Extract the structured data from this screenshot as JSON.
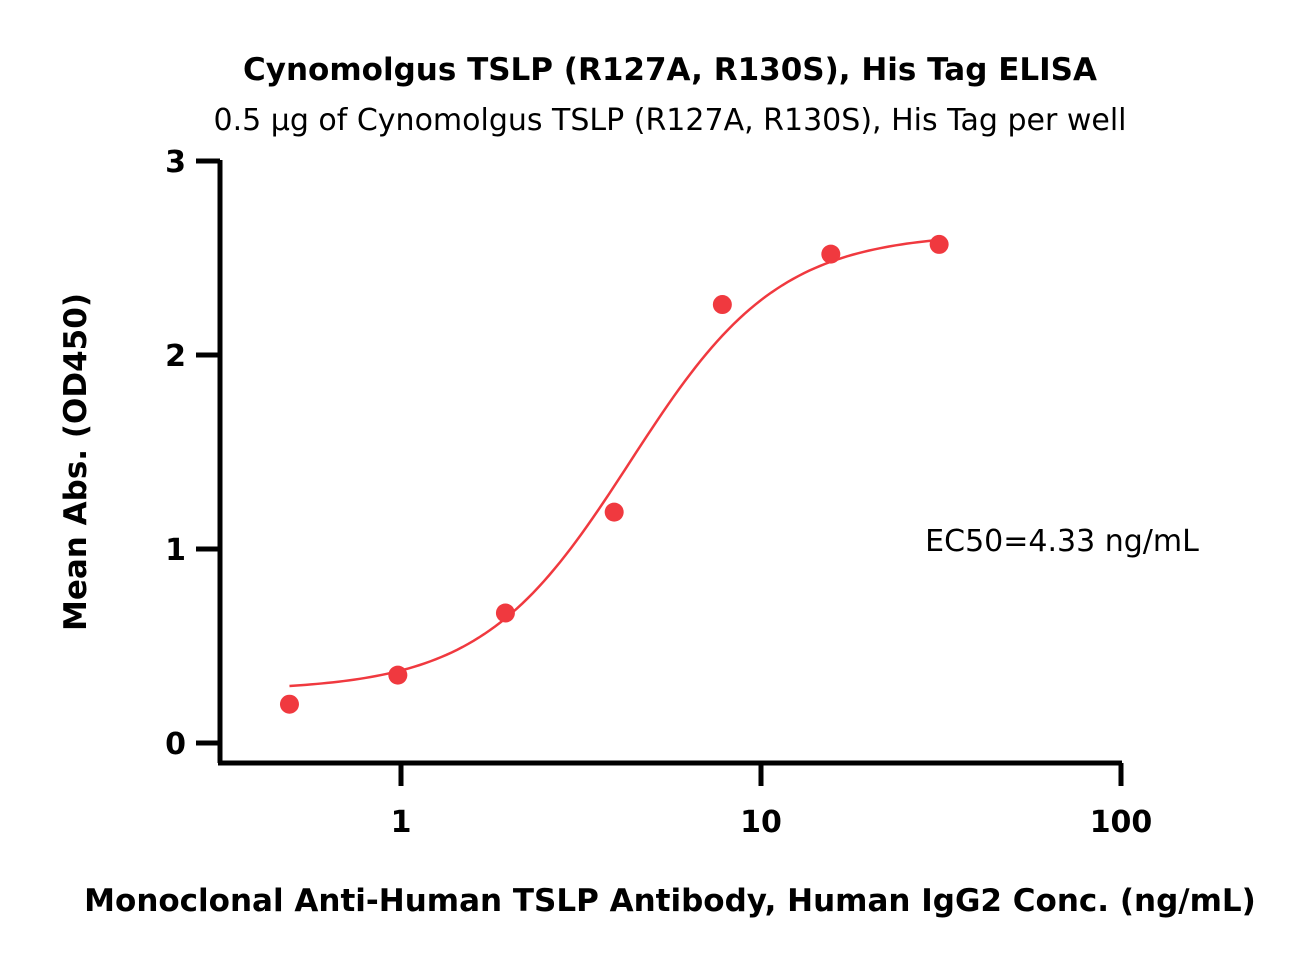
{
  "chart_data": {
    "type": "scatter",
    "title": "Cynomolgus TSLP (R127A, R130S), His Tag ELISA",
    "subtitle": "0.5 µg of Cynomolgus TSLP (R127A, R130S), His Tag per well",
    "xlabel": "Monoclonal Anti-Human TSLP Antibody, Human IgG2 Conc. (ng/mL)",
    "ylabel": "Mean Abs. (OD450)",
    "x_scale": "log",
    "xlim": [
      0.3,
      100
    ],
    "ylim": [
      0,
      3
    ],
    "x_ticks": [
      "1",
      "10",
      "100"
    ],
    "y_ticks": [
      "0",
      "1",
      "2",
      "3"
    ],
    "grid": false,
    "annotation": "EC50=4.33 ng/mL",
    "colors": {
      "series": "#f0393f",
      "axes": "#000000"
    },
    "series": [
      {
        "x": [
          0.49,
          0.98,
          1.95,
          3.91,
          7.81,
          15.63,
          31.25
        ],
        "y": [
          0.2,
          0.35,
          0.67,
          1.19,
          2.26,
          2.52,
          2.57
        ]
      }
    ],
    "fit": {
      "model": "4PL",
      "bottom": 0.27,
      "top": 2.63,
      "ec50": 4.33,
      "hill": 2.1
    }
  }
}
